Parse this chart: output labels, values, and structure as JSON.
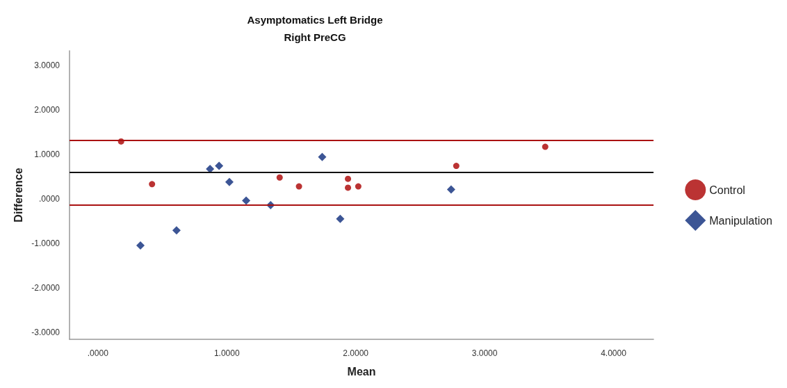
{
  "chart_data": {
    "type": "scatter",
    "title": "Asymptomatics Left Bridge",
    "subtitle": "Right PreCG",
    "xlabel": "Mean",
    "ylabel": "Difference",
    "xlim": [
      -0.22,
      4.31
    ],
    "ylim": [
      -3.16,
      3.33
    ],
    "xticks": [
      {
        "value": 0,
        "label": ".0000"
      },
      {
        "value": 1,
        "label": "1.0000"
      },
      {
        "value": 2,
        "label": "2.0000"
      },
      {
        "value": 3,
        "label": "3.0000"
      },
      {
        "value": 4,
        "label": "4.0000"
      }
    ],
    "yticks": [
      {
        "value": -3,
        "label": "-3.0000"
      },
      {
        "value": -2,
        "label": "-2.0000"
      },
      {
        "value": -1,
        "label": "-1.0000"
      },
      {
        "value": 0,
        "label": ".0000"
      },
      {
        "value": 1,
        "label": "1.0000"
      },
      {
        "value": 2,
        "label": "2.0000"
      },
      {
        "value": 3,
        "label": "3.0000"
      }
    ],
    "grid": false,
    "legend": "right",
    "series": [
      {
        "name": "Control",
        "color": "#aa0000",
        "marker": "circle",
        "x": [
          0.18,
          0.42,
          1.41,
          1.56,
          1.94,
          1.94,
          2.02,
          2.78,
          3.47
        ],
        "values": [
          1.29,
          0.33,
          0.48,
          0.28,
          0.45,
          0.25,
          0.28,
          0.74,
          1.17
        ]
      },
      {
        "name": "Manipulation",
        "color": "#0b2b7a",
        "marker": "diamond",
        "x": [
          0.33,
          0.61,
          0.87,
          0.94,
          1.02,
          1.15,
          1.34,
          1.74,
          1.88,
          2.74
        ],
        "values": [
          -1.05,
          -0.71,
          0.67,
          0.74,
          0.38,
          -0.04,
          -0.14,
          0.94,
          -0.45,
          0.21
        ]
      }
    ],
    "ref_lines": [
      {
        "axis": "y",
        "value": 1.31,
        "label": null,
        "color": "#aa1111"
      },
      {
        "axis": "y",
        "value": 0.59,
        "label": null,
        "color": "#111111"
      },
      {
        "axis": "y",
        "value": -0.14,
        "label": null,
        "color": "#aa1111"
      }
    ]
  }
}
